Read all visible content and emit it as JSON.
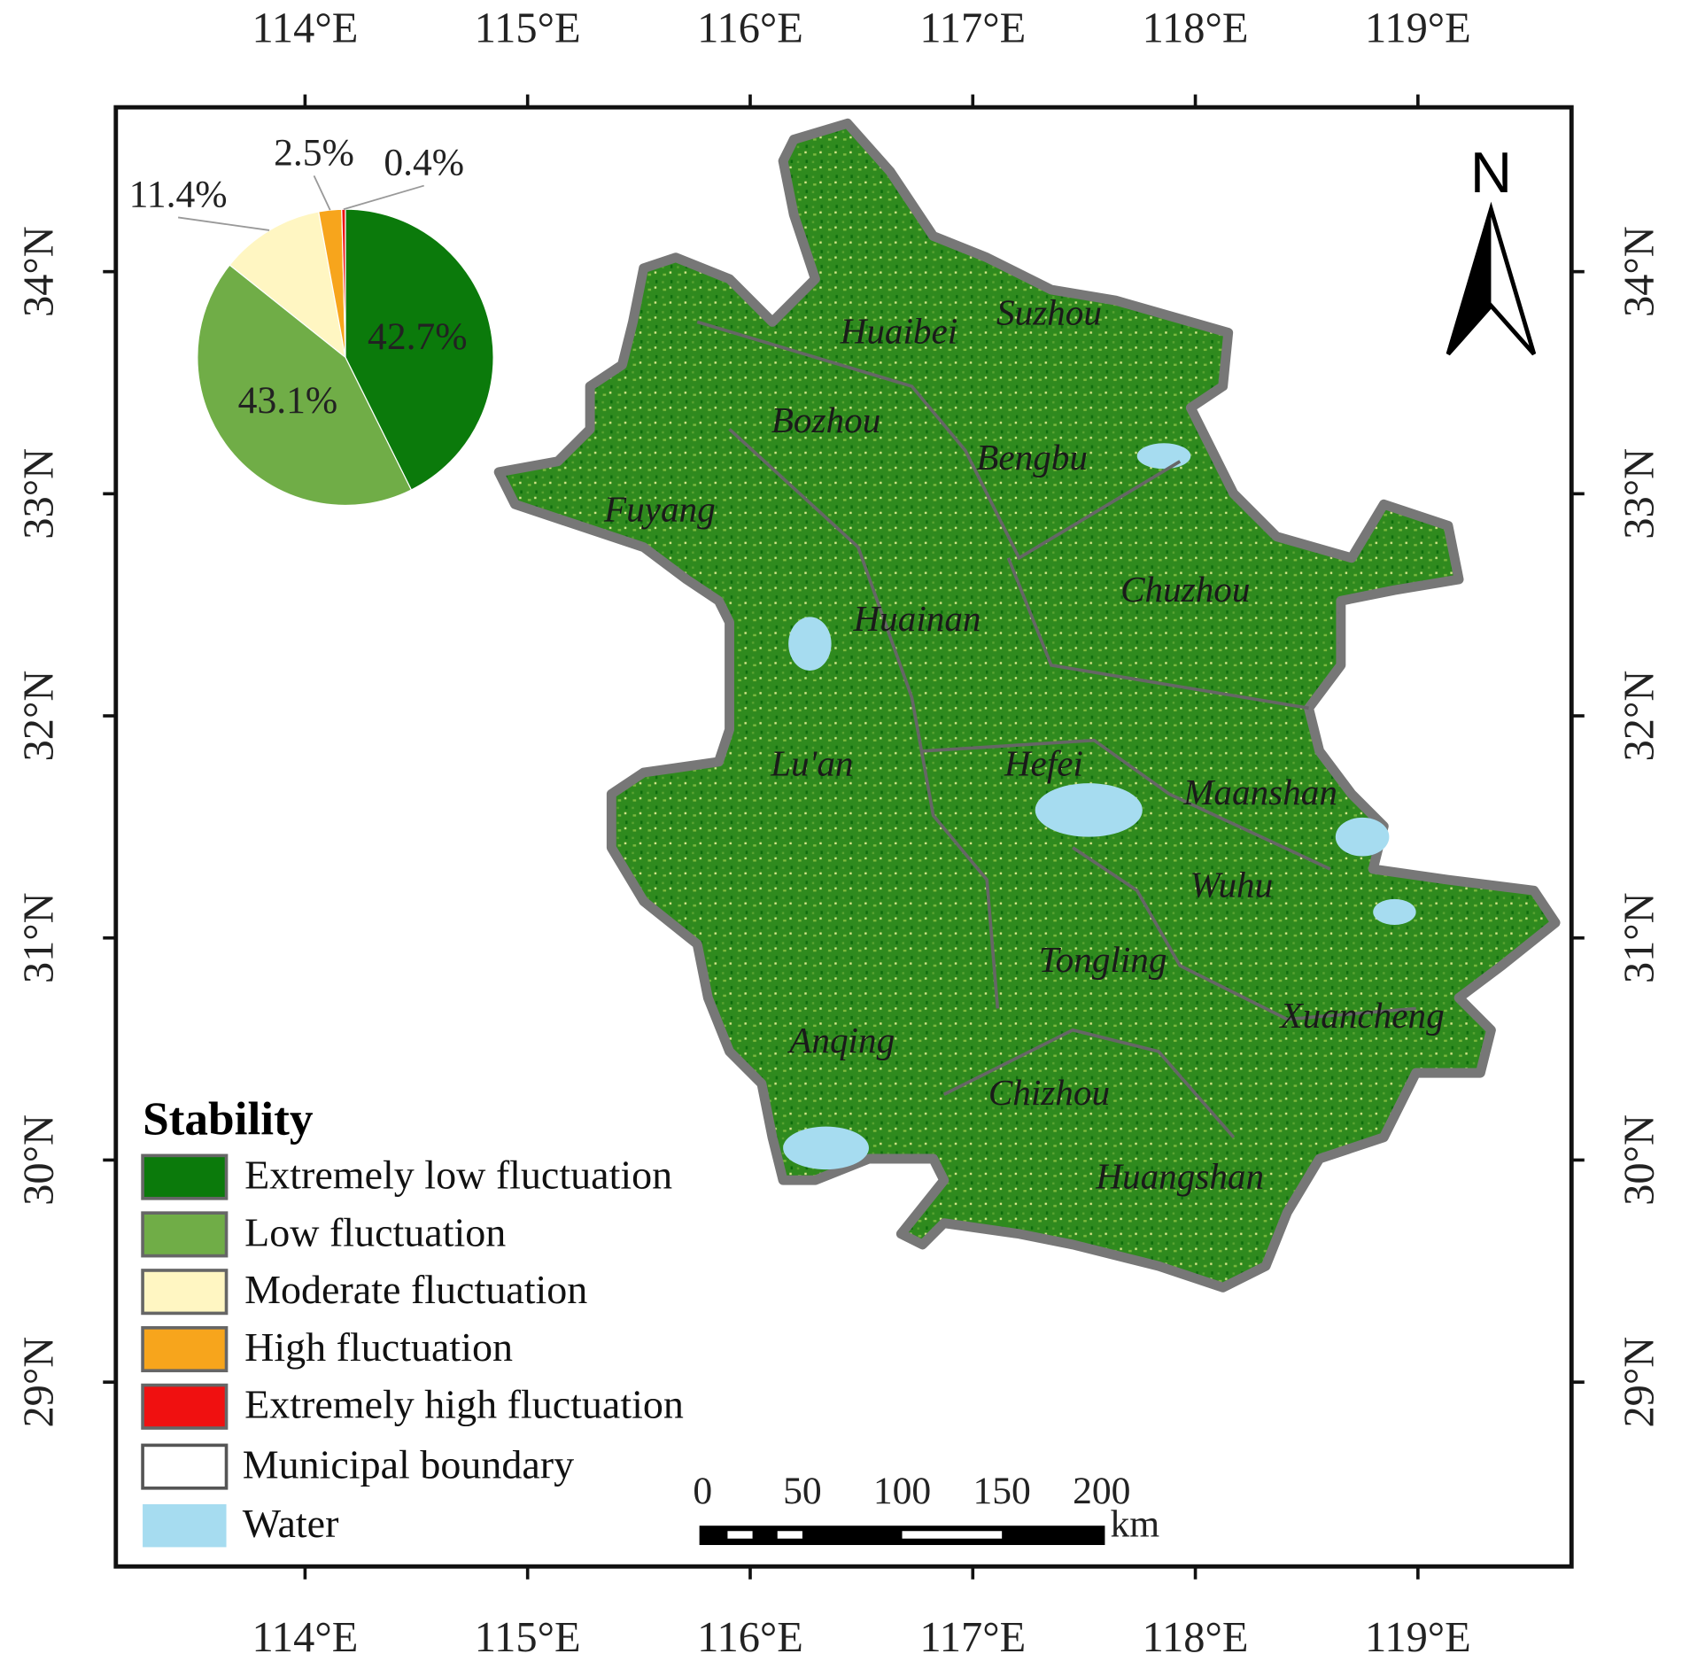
{
  "chart_data": {
    "type": "pie",
    "legend_title": "Stability",
    "categories": [
      "Extremely low fluctuation",
      "Low fluctuation",
      "Moderate fluctuation",
      "High fluctuation",
      "Extremely high fluctuation"
    ],
    "values": [
      42.7,
      43.1,
      11.4,
      2.5,
      0.4
    ],
    "value_labels": [
      "42.7%",
      "43.1%",
      "11.4%",
      "2.5%",
      "0.4%"
    ],
    "colors": [
      "#0b7a0b",
      "#70ad47",
      "#fff6c2",
      "#f7a51c",
      "#f01010"
    ]
  },
  "map": {
    "xlim": [
      113.15,
      119.69
    ],
    "ylim": [
      28.17,
      34.74
    ],
    "xticks": [
      {
        "value": 114,
        "label": "114°E"
      },
      {
        "value": 115,
        "label": "115°E"
      },
      {
        "value": 116,
        "label": "116°E"
      },
      {
        "value": 117,
        "label": "117°E"
      },
      {
        "value": 118,
        "label": "118°E"
      },
      {
        "value": 119,
        "label": "119°E"
      }
    ],
    "yticks": [
      {
        "value": 29,
        "label": "29°N"
      },
      {
        "value": 30,
        "label": "30°N"
      },
      {
        "value": 31,
        "label": "31°N"
      },
      {
        "value": 32,
        "label": "32°N"
      },
      {
        "value": 33,
        "label": "33°N"
      },
      {
        "value": 34,
        "label": "34°N"
      }
    ],
    "north": "N",
    "cities": [
      "Huaibei",
      "Suzhou",
      "Bozhou",
      "Bengbu",
      "Fuyang",
      "Chuzhou",
      "Huainan",
      "Lu'an",
      "Hefei",
      "Maanshan",
      "Wuhu",
      "Tongling",
      "Xuancheng",
      "Anqing",
      "Chizhou",
      "Huangshan"
    ],
    "legend_extra": [
      "Municipal boundary",
      "Water"
    ],
    "scale_ticks": [
      0,
      50,
      100,
      150,
      200
    ],
    "scale_unit": "km"
  }
}
